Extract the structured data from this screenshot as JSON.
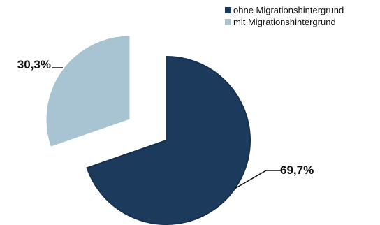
{
  "chart_data": {
    "type": "pie",
    "title": "",
    "categories": [
      "ohne Migrationshintergrund",
      "mit Migrationshintergrund"
    ],
    "values": [
      69.7,
      30.3
    ],
    "data_labels": [
      "69,7%",
      "30,3%"
    ],
    "exploded": true,
    "legend_position": "top-right",
    "colors": [
      "#1b3a5c",
      "#a8c4d3"
    ]
  },
  "legend": {
    "items": [
      {
        "label": "ohne Migrationshintergrund",
        "color": "#1b3a5c"
      },
      {
        "label": "mit Migrationshintergrund",
        "color": "#a8c4d3"
      }
    ]
  }
}
